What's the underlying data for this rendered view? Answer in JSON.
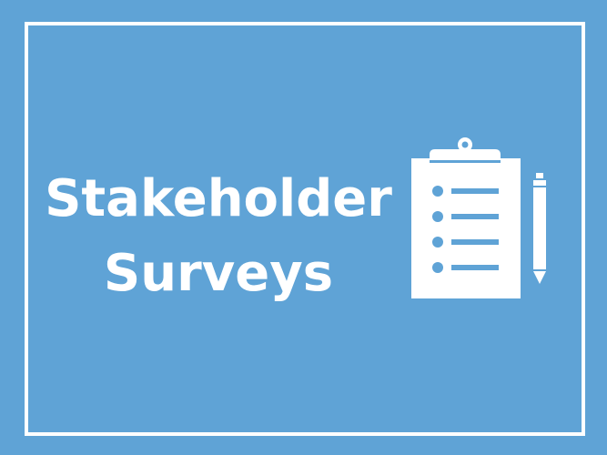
{
  "slide": {
    "background_color": "#5fa3d6",
    "frame_color": "#ffffff",
    "title": {
      "line1": "Stakeholder",
      "line2": "Surveys"
    },
    "icons": {
      "clipboard": "clipboard-checklist-icon",
      "pencil": "pencil-icon"
    },
    "checklist_item_count": 4
  }
}
